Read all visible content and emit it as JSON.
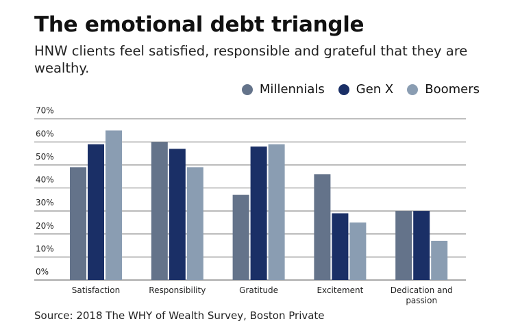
{
  "chart_data": {
    "type": "bar",
    "title": "The emotional debt triangle",
    "subtitle": "HNW clients feel satisfied, responsible and grateful that they are wealthy.",
    "categories": [
      "Satisfaction",
      "Responsibility",
      "Gratitude",
      "Excitement",
      "Dedication and passion"
    ],
    "series": [
      {
        "name": "Millennials",
        "color": "#64738a",
        "values": [
          49,
          60,
          37,
          46,
          30
        ]
      },
      {
        "name": "Gen X",
        "color": "#1a2f66",
        "values": [
          59,
          57,
          58,
          29,
          30
        ]
      },
      {
        "name": "Boomers",
        "color": "#8a9db2",
        "values": [
          65,
          49,
          59,
          25,
          17
        ]
      }
    ],
    "yticks": [
      "0%",
      "10%",
      "20%",
      "30%",
      "40%",
      "50%",
      "60%",
      "70%"
    ],
    "ylim": [
      0,
      70
    ],
    "unit": "%",
    "grid": true,
    "legend": "top-right",
    "source": "Source: 2018 The WHY of Wealth Survey, Boston Private"
  }
}
